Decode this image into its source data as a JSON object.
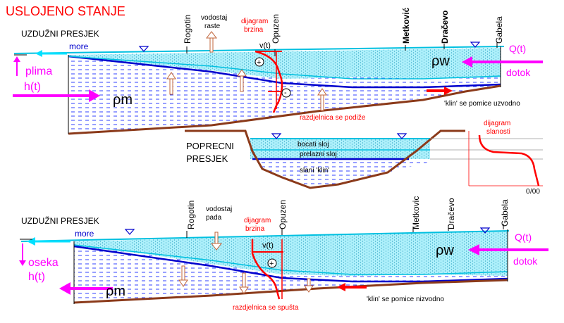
{
  "title": "USLOJENO STANJE",
  "top_section": {
    "label": "UZDUŽNI PRESJEK",
    "sea": "more",
    "tide": "plima",
    "tide_fn": "h(t)",
    "rho_sea": "ρm",
    "rho_w": "ρw",
    "flow_label": "Q(t)",
    "inflow": "dotok",
    "level_note_1": "vodostaj",
    "level_note_2": "raste",
    "velocity_note_1": "dijagram",
    "velocity_note_2": "brzina",
    "velocity_symbol": "v(t)",
    "interface_note": "razdjelnica se podiže",
    "wedge_note": "'klin' se pomice uzvodno",
    "plus": "⊕",
    "minus": "⊖"
  },
  "places": [
    "Rogotin",
    "Opuzen",
    "Metković",
    "Dračevo",
    "Gabela"
  ],
  "places_bottom": [
    "Rogotin",
    "Opuzen",
    "Metkovic",
    "Dračevo",
    "Gabela"
  ],
  "cross_section": {
    "label_1": "POPRECNI",
    "label_2": "PRESJEK",
    "layer_top": "bocati sloj",
    "layer_mid": "prelazni sloj",
    "layer_bottom": "slani 'klin'",
    "salinity_1": "dijagram",
    "salinity_2": "slanosti",
    "zero": "0",
    "per_mille": "/00"
  },
  "bottom_section": {
    "label": "UZDUŽNI PRESJEK",
    "sea": "more",
    "tide": "oseka",
    "tide_fn": "h(t)",
    "rho_sea": "ρm",
    "rho_w": "ρw",
    "flow_label": "Q(t)",
    "inflow": "dotok",
    "level_note_1": "vodostaj",
    "level_note_2": "pada",
    "velocity_note_1": "dijagram",
    "velocity_note_2": "brzina",
    "velocity_symbol": "v(t)",
    "interface_note": "razdjelnica se spušta",
    "wedge_note": "'klin' se pomice nizvodno",
    "plus": "⊕"
  },
  "colors": {
    "fresh_water": "#7fe7f7",
    "salt_water": "#ffffff",
    "interface": "#0000cc",
    "bed": "#8b3a1a",
    "magenta": "#ff00ff",
    "red": "#ff0000"
  }
}
